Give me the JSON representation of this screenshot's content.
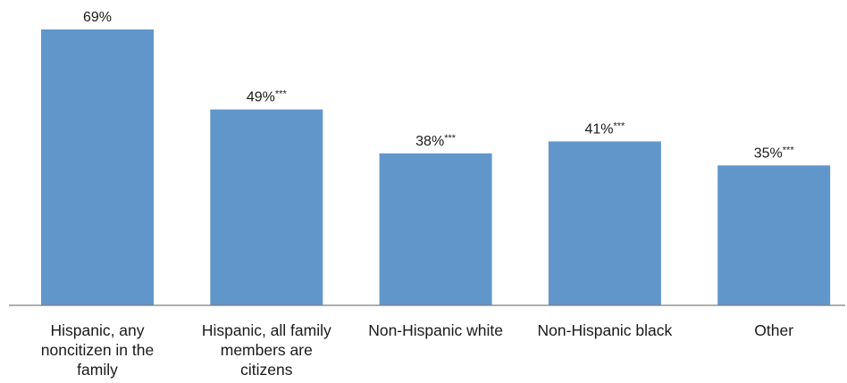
{
  "chart_data": {
    "type": "bar",
    "title": "",
    "xlabel": "",
    "ylabel": "",
    "ylim": [
      0,
      70
    ],
    "grid": false,
    "legend": "none",
    "bar_color": "#6196CB",
    "categories": [
      "Hispanic, any noncitizen in the family",
      "Hispanic, all family members are citizens",
      "Non-Hispanic white",
      "Non-Hispanic black",
      "Other"
    ],
    "category_lines": [
      [
        "Hispanic, any",
        "noncitizen in the",
        "family"
      ],
      [
        "Hispanic, all family",
        "members are",
        "citizens"
      ],
      [
        "Non-Hispanic white"
      ],
      [
        "Non-Hispanic black"
      ],
      [
        "Other"
      ]
    ],
    "values": [
      69,
      49,
      38,
      41,
      35
    ],
    "value_labels": [
      "69%",
      "49%",
      "38%",
      "41%",
      "35%"
    ],
    "significance_marks": [
      "",
      "***",
      "***",
      "***",
      "***"
    ]
  }
}
